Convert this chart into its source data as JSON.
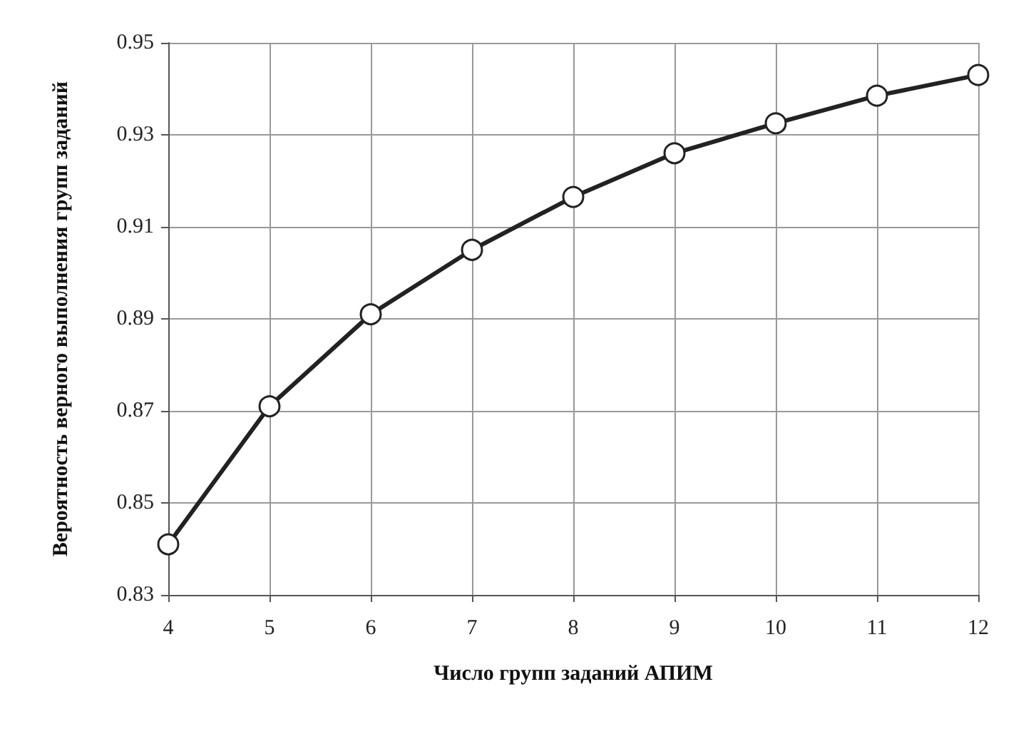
{
  "chart_data": {
    "type": "line",
    "xlabel": "Число групп заданий АПИМ",
    "ylabel": "Вероятность верного выполнения групп заданий",
    "x": [
      4,
      5,
      6,
      7,
      8,
      9,
      10,
      11,
      12
    ],
    "series": [
      {
        "color": "#222222",
        "values": [
          0.841,
          0.871,
          0.891,
          0.905,
          0.9165,
          0.926,
          0.9325,
          0.9385,
          0.943
        ]
      }
    ],
    "xlim": [
      4,
      12
    ],
    "xticks": [
      4,
      5,
      6,
      7,
      8,
      9,
      10,
      11,
      12
    ],
    "ylim": [
      0.83,
      0.95
    ],
    "yticks": [
      0.83,
      0.85,
      0.87,
      0.89,
      0.91,
      0.93,
      0.95
    ],
    "grid": true,
    "marker": "circle",
    "line_style": "solid"
  }
}
